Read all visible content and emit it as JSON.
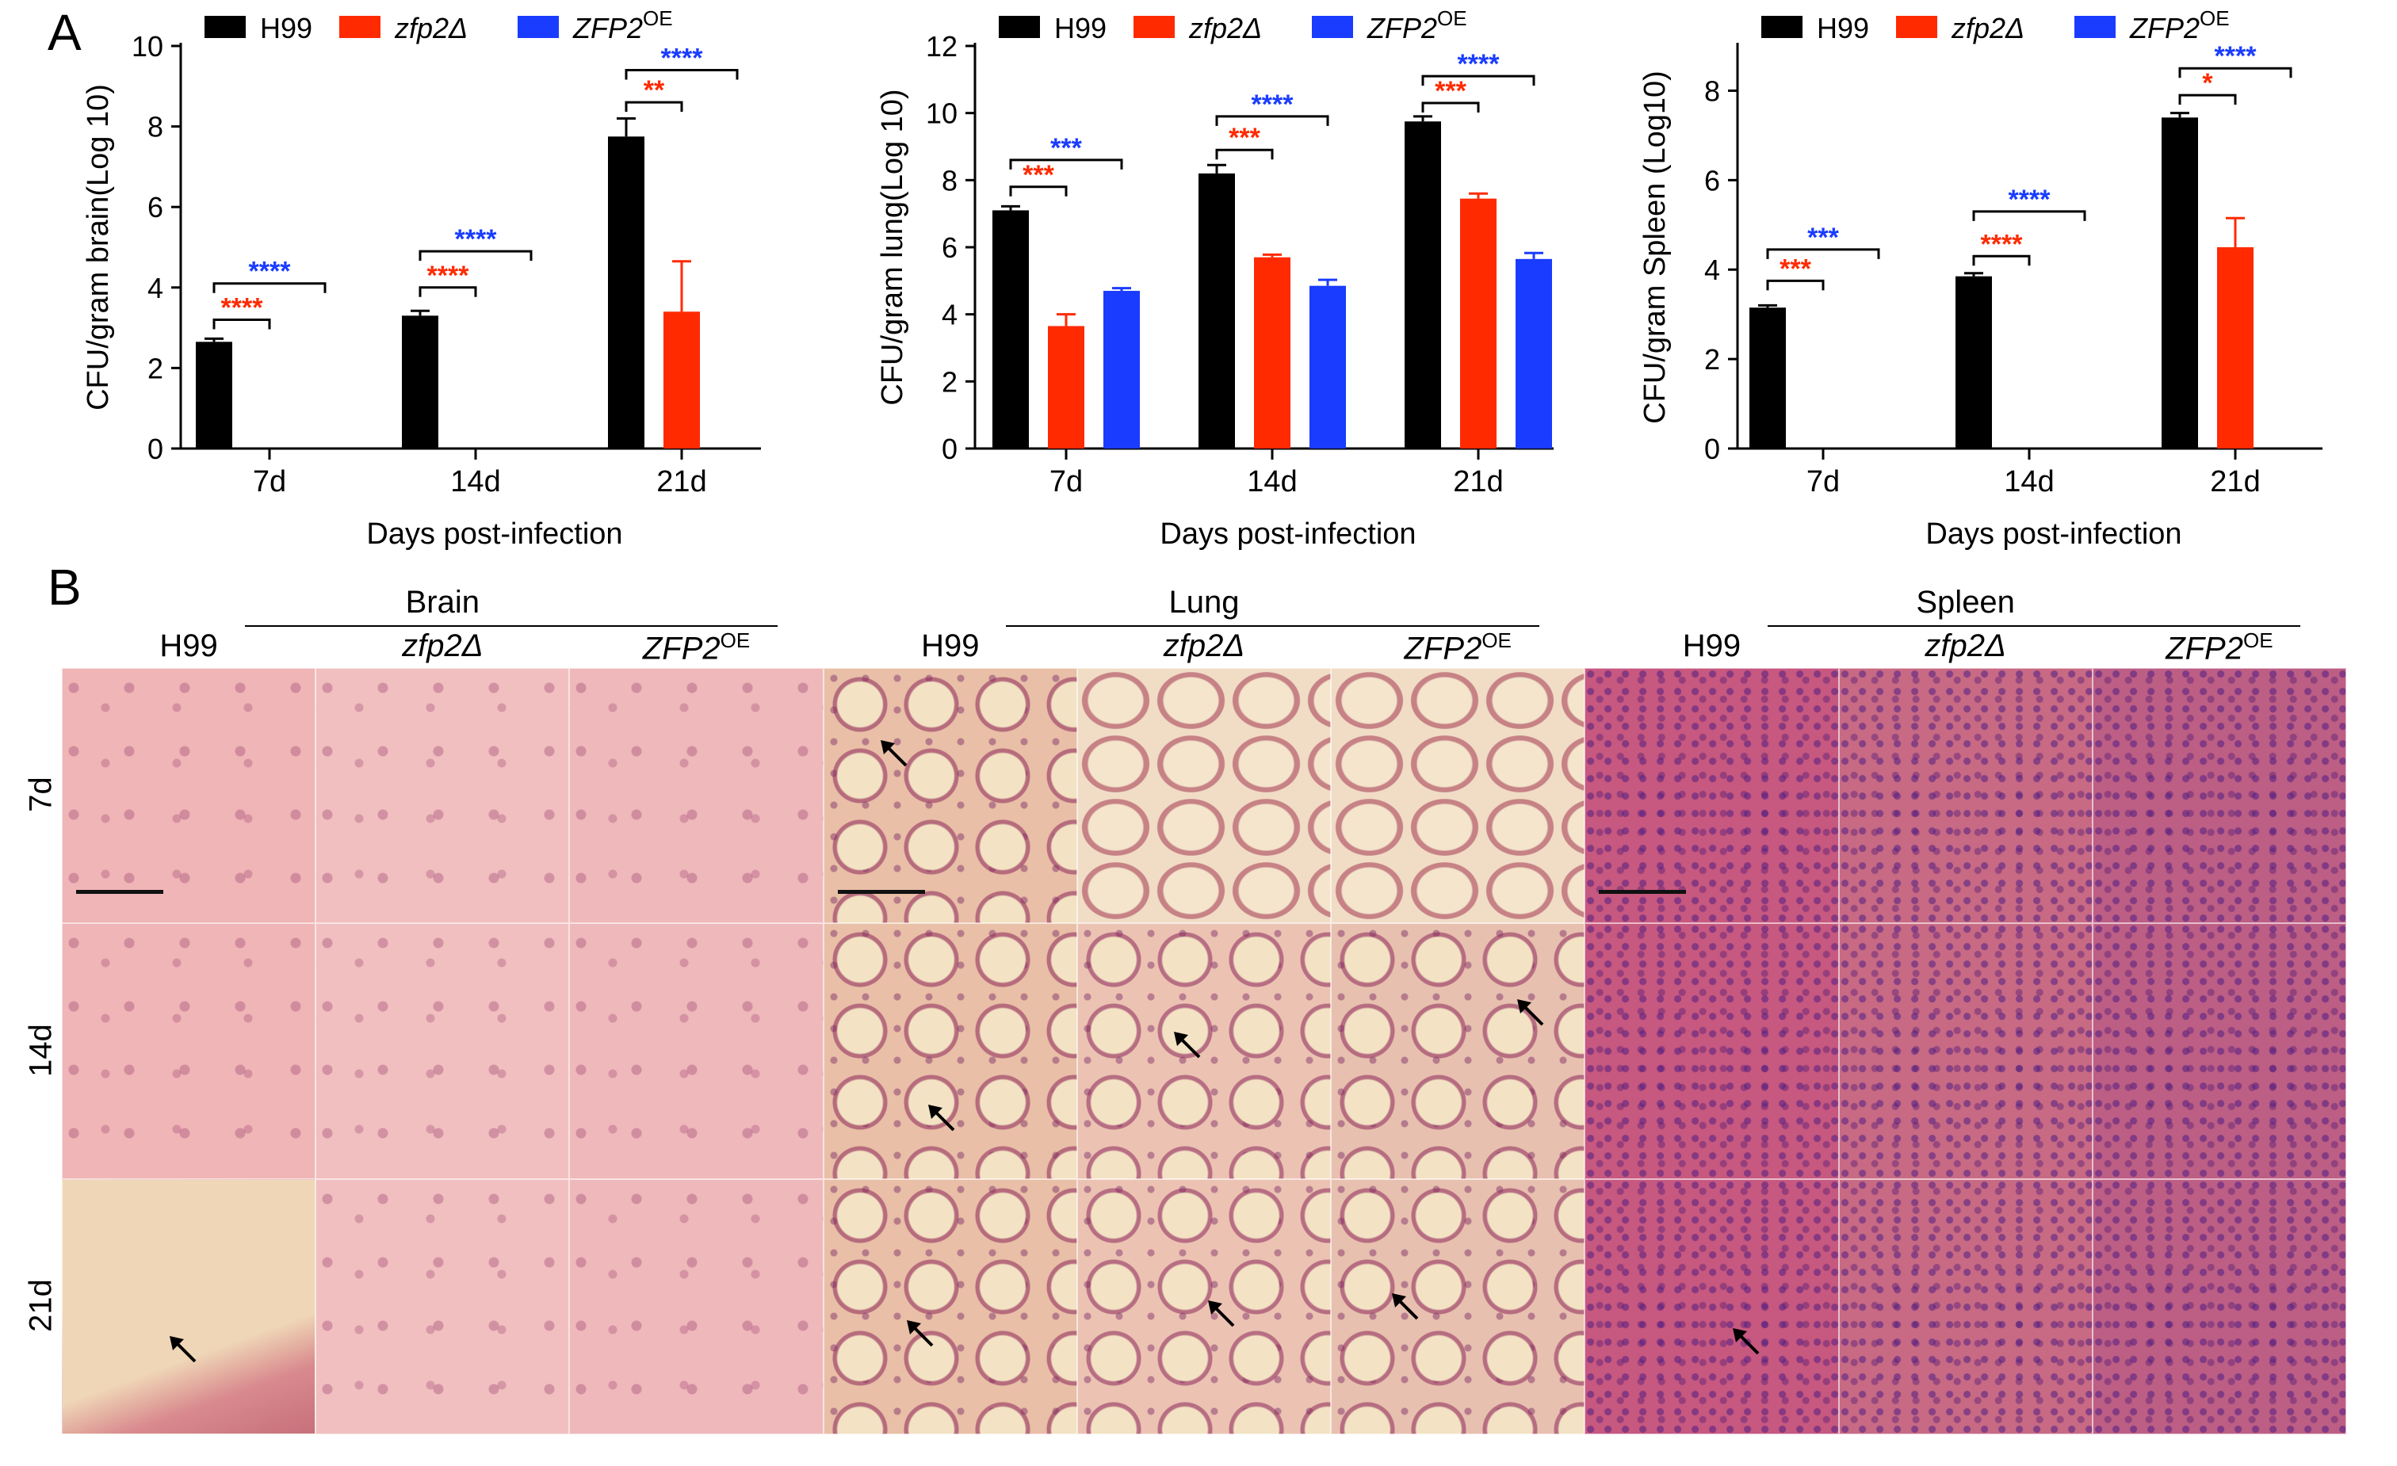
{
  "panel_a_label": "A",
  "panel_b_label": "B",
  "legend": {
    "h99": "H99",
    "zfp2": "zfp2Δ",
    "zfp2oe": "ZFP2",
    "zfp2oe_sup": "OE"
  },
  "colors": {
    "h99": "#000000",
    "zfp2": "#ff2a00",
    "zfp2oe": "#1a3cff"
  },
  "chart_data": [
    {
      "type": "bar",
      "ylabel": "CFU/gram brain(Log 10)",
      "xlabel": "Days post-infection",
      "categories": [
        "7d",
        "14d",
        "21d"
      ],
      "ylim": [
        0,
        10
      ],
      "yticks": [
        0,
        2,
        4,
        6,
        8,
        10
      ],
      "series": [
        {
          "name": "H99",
          "values": [
            2.65,
            3.3,
            7.75
          ],
          "errors": [
            0.08,
            0.12,
            0.45
          ]
        },
        {
          "name": "zfp2Δ",
          "values": [
            0,
            0,
            3.4
          ],
          "errors": [
            0,
            0,
            1.25
          ]
        },
        {
          "name": "ZFP2OE",
          "values": [
            0,
            0,
            0
          ],
          "errors": [
            0,
            0,
            0
          ]
        }
      ],
      "significance": [
        {
          "cat": 0,
          "kind": "red",
          "label": "****",
          "top": 3.2
        },
        {
          "cat": 0,
          "kind": "blue",
          "label": "****",
          "top": 4.1
        },
        {
          "cat": 1,
          "kind": "red",
          "label": "****",
          "top": 4.0
        },
        {
          "cat": 1,
          "kind": "blue",
          "label": "****",
          "top": 4.9
        },
        {
          "cat": 2,
          "kind": "red",
          "label": "**",
          "top": 8.6
        },
        {
          "cat": 2,
          "kind": "blue",
          "label": "****",
          "top": 9.4
        }
      ]
    },
    {
      "type": "bar",
      "ylabel": "CFU/gram lung(Log 10)",
      "xlabel": "Days post-infection",
      "categories": [
        "7d",
        "14d",
        "21d"
      ],
      "ylim": [
        0,
        12
      ],
      "yticks": [
        0,
        2,
        4,
        6,
        8,
        10,
        12
      ],
      "series": [
        {
          "name": "H99",
          "values": [
            7.1,
            8.2,
            9.75
          ],
          "errors": [
            0.12,
            0.25,
            0.15
          ]
        },
        {
          "name": "zfp2Δ",
          "values": [
            3.65,
            5.7,
            7.45
          ],
          "errors": [
            0.35,
            0.08,
            0.15
          ]
        },
        {
          "name": "ZFP2OE",
          "values": [
            4.7,
            4.85,
            5.65
          ],
          "errors": [
            0.08,
            0.18,
            0.18
          ]
        }
      ],
      "significance": [
        {
          "cat": 0,
          "kind": "red",
          "label": "***",
          "top": 7.8
        },
        {
          "cat": 0,
          "kind": "blue",
          "label": "***",
          "top": 8.6
        },
        {
          "cat": 1,
          "kind": "red",
          "label": "***",
          "top": 8.9
        },
        {
          "cat": 1,
          "kind": "blue",
          "label": "****",
          "top": 9.9
        },
        {
          "cat": 2,
          "kind": "red",
          "label": "***",
          "top": 10.3
        },
        {
          "cat": 2,
          "kind": "blue",
          "label": "****",
          "top": 11.1
        }
      ]
    },
    {
      "type": "bar",
      "ylabel": "CFU/gram Spleen (Log10)",
      "xlabel": "Days post-infection",
      "categories": [
        "7d",
        "14d",
        "21d"
      ],
      "ylim": [
        0,
        9
      ],
      "yticks": [
        0,
        2,
        4,
        6,
        8
      ],
      "series": [
        {
          "name": "H99",
          "values": [
            3.15,
            3.85,
            7.4
          ],
          "errors": [
            0.05,
            0.07,
            0.1
          ]
        },
        {
          "name": "zfp2Δ",
          "values": [
            0,
            0,
            4.5
          ],
          "errors": [
            0,
            0,
            0.65
          ]
        },
        {
          "name": "ZFP2OE",
          "values": [
            0,
            0,
            0
          ],
          "errors": [
            0,
            0,
            0
          ]
        }
      ],
      "significance": [
        {
          "cat": 0,
          "kind": "red",
          "label": "***",
          "top": 3.75
        },
        {
          "cat": 0,
          "kind": "blue",
          "label": "***",
          "top": 4.45
        },
        {
          "cat": 1,
          "kind": "red",
          "label": "****",
          "top": 4.3
        },
        {
          "cat": 1,
          "kind": "blue",
          "label": "****",
          "top": 5.3
        },
        {
          "cat": 2,
          "kind": "red",
          "label": "*",
          "top": 7.9
        },
        {
          "cat": 2,
          "kind": "blue",
          "label": "****",
          "top": 8.5
        }
      ]
    }
  ],
  "histology": {
    "organs": [
      "Brain",
      "Lung",
      "Spleen"
    ],
    "strain_labels": [
      "H99",
      "zfp2Δ",
      "ZFP2"
    ],
    "strain_sup": "OE",
    "timepoints": [
      "7d",
      "14d",
      "21d"
    ],
    "tile_colors": {
      "Brain": [
        "#f0b5b6",
        "#f1bfbf",
        "#efb8ba"
      ],
      "Lung": [
        "#e9bfa7",
        "#ecc3b3",
        "#e8c0af"
      ],
      "Spleen": [
        "#c7587f",
        "#c86a84",
        "#bd5e84"
      ]
    }
  }
}
